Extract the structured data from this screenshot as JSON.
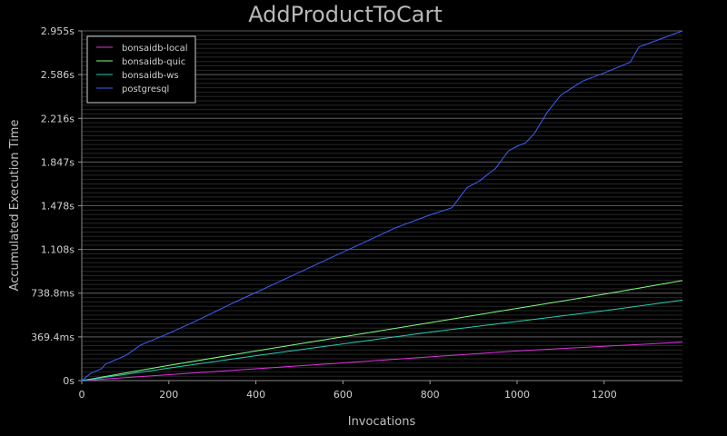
{
  "chart_data": {
    "type": "line",
    "title": "AddProductToCart",
    "xlabel": "Invocations",
    "ylabel": "Accumulated Execution Time",
    "xlim": [
      0,
      1380
    ],
    "ylim": [
      0,
      2.955
    ],
    "x_ticks": [
      0,
      200,
      400,
      600,
      800,
      1000,
      1200
    ],
    "y_ticks": [
      {
        "value": 0,
        "label": "0s"
      },
      {
        "value": 0.3694,
        "label": "369.4ms"
      },
      {
        "value": 0.7388,
        "label": "738.8ms"
      },
      {
        "value": 1.108,
        "label": "1.108s"
      },
      {
        "value": 1.478,
        "label": "1.478s"
      },
      {
        "value": 1.847,
        "label": "1.847s"
      },
      {
        "value": 2.216,
        "label": "2.216s"
      },
      {
        "value": 2.586,
        "label": "2.586s"
      },
      {
        "value": 2.955,
        "label": "2.955s"
      }
    ],
    "grid": true,
    "legend_position": "top-left",
    "series": [
      {
        "name": "bonsaidb-local",
        "color": "#e030e0",
        "x": [
          0,
          200,
          400,
          600,
          800,
          1000,
          1200,
          1380
        ],
        "y": [
          0,
          0.05,
          0.1,
          0.15,
          0.2,
          0.25,
          0.29,
          0.325
        ]
      },
      {
        "name": "bonsaidb-quic",
        "color": "#80ff80",
        "x": [
          0,
          200,
          400,
          600,
          800,
          1000,
          1200,
          1380
        ],
        "y": [
          0,
          0.128,
          0.25,
          0.37,
          0.49,
          0.61,
          0.73,
          0.845
        ]
      },
      {
        "name": "bonsaidb-ws",
        "color": "#20d0b0",
        "x": [
          0,
          200,
          400,
          600,
          800,
          1000,
          1200,
          1380
        ],
        "y": [
          0,
          0.105,
          0.21,
          0.31,
          0.41,
          0.5,
          0.59,
          0.68
        ]
      },
      {
        "name": "postgresql",
        "color": "#4060ff",
        "x": [
          0,
          20,
          45,
          55,
          100,
          120,
          135,
          200,
          260,
          350,
          450,
          550,
          650,
          720,
          800,
          850,
          885,
          900,
          915,
          935,
          950,
          980,
          1000,
          1020,
          1040,
          1070,
          1100,
          1150,
          1200,
          1260,
          1280,
          1380
        ],
        "y": [
          0,
          0.06,
          0.1,
          0.14,
          0.21,
          0.26,
          0.3,
          0.4,
          0.5,
          0.66,
          0.83,
          1.0,
          1.17,
          1.29,
          1.4,
          1.46,
          1.63,
          1.66,
          1.69,
          1.75,
          1.79,
          1.94,
          1.98,
          2.01,
          2.09,
          2.27,
          2.41,
          2.53,
          2.6,
          2.69,
          2.82,
          2.955
        ]
      }
    ]
  }
}
